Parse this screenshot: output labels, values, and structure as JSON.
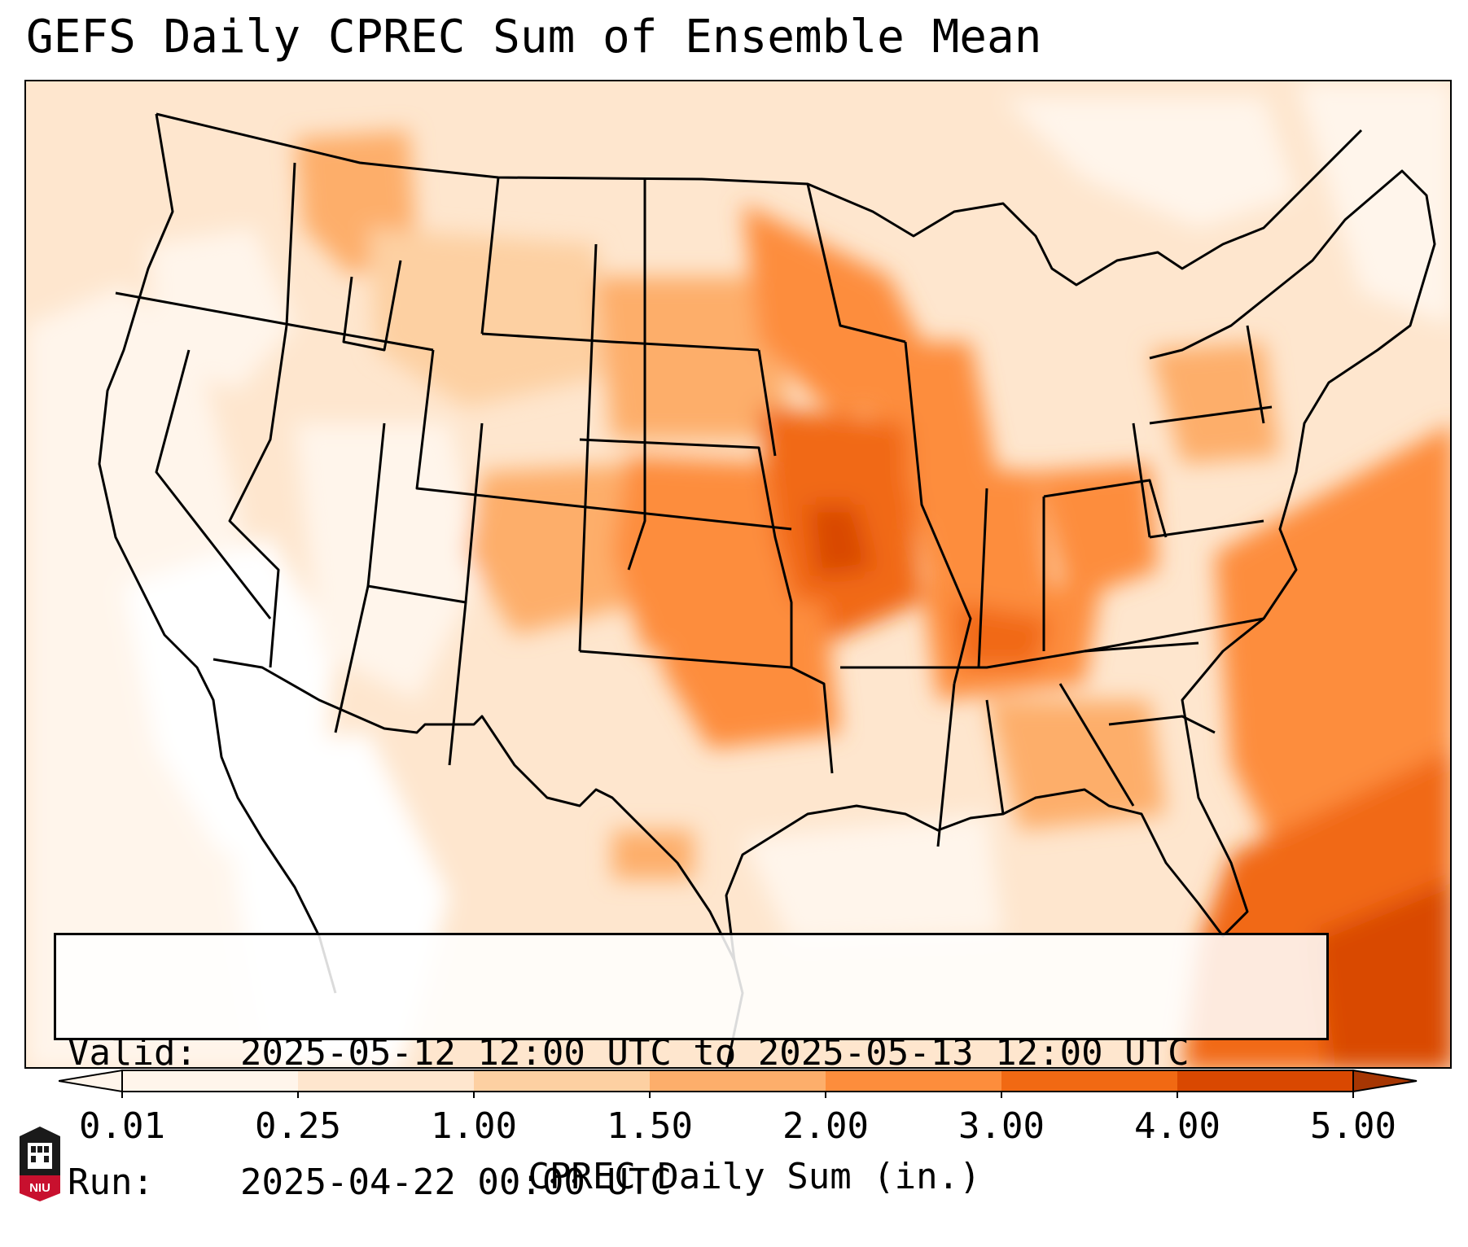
{
  "title": "GEFS Daily CPREC Sum of Ensemble Mean",
  "info": {
    "valid_label": "Valid:",
    "valid_value": "2025-05-12 12:00 UTC to 2025-05-13 12:00 UTC",
    "run_label": "Run:",
    "run_value": "2025-04-22 00:00 UTC"
  },
  "colorbar": {
    "label": "CPREC Daily Sum (in.)",
    "ticks": [
      "0.01",
      "0.25",
      "1.00",
      "1.50",
      "2.00",
      "3.00",
      "4.00",
      "5.00"
    ],
    "colors": [
      "#fff5eb",
      "#fee6ce",
      "#fdd0a2",
      "#fdae6b",
      "#fd8d3c",
      "#f16913",
      "#d94801",
      "#a63603"
    ],
    "extend": "both"
  },
  "logo": {
    "text": "NIU",
    "icon": "niu-logo-icon"
  },
  "map": {
    "type": "filled contour precipitation map",
    "region": "Contiguous United States",
    "colors": {
      "frame": "#000000",
      "borders": "#000000"
    }
  }
}
